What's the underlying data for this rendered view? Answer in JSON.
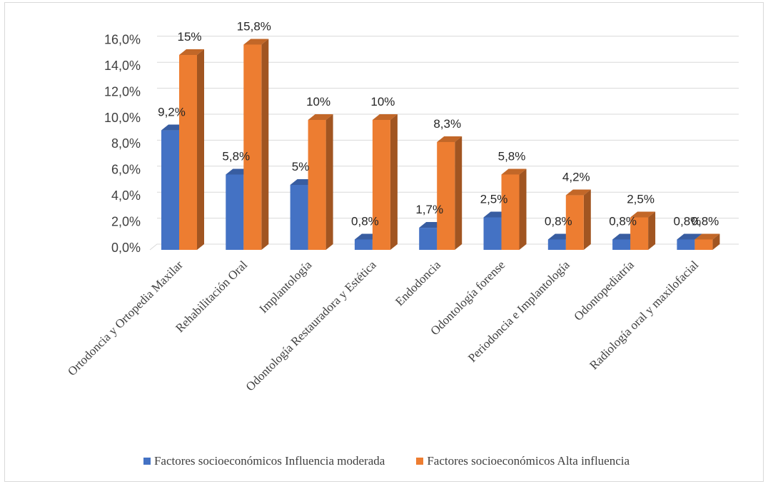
{
  "chart_data": {
    "type": "bar",
    "style": "3d-clustered-column",
    "categories": [
      "Ortodoncia y Ortopedia Maxilar",
      "Rehabilitación Oral",
      "Implantología",
      "Odontología Restauradora y Estética",
      "Endodoncia",
      "Odontología forense",
      "Periodoncia e Implantología",
      "Odontopediatría",
      "Radiología oral y maxilofacial"
    ],
    "series": [
      {
        "name": "Factores socioeconómicos Influencia moderada",
        "color": "#4472c4",
        "values": [
          9.2,
          5.8,
          5.0,
          0.8,
          1.7,
          2.5,
          0.8,
          0.8,
          0.8
        ],
        "labels": [
          "9,2%",
          "5,8%",
          "5%",
          "0,8%",
          "1,7%",
          "2,5%",
          "0,8%",
          "0,8%",
          "0,8%"
        ]
      },
      {
        "name": "Factores socioeconómicos Alta influencia",
        "color": "#ed7d31",
        "values": [
          15.0,
          15.8,
          10.0,
          10.0,
          8.3,
          5.8,
          4.2,
          2.5,
          0.8
        ],
        "labels": [
          "15%",
          "15,8%",
          "10%",
          "10%",
          "8,3%",
          "5,8%",
          "4,2%",
          "2,5%",
          "0,8%"
        ]
      }
    ],
    "ylim": [
      0,
      16
    ],
    "yticks": [
      "0,0%",
      "2,0%",
      "4,0%",
      "6,0%",
      "8,0%",
      "10,0%",
      "12,0%",
      "14,0%",
      "16,0%"
    ],
    "grid": true,
    "legend_position": "bottom"
  }
}
